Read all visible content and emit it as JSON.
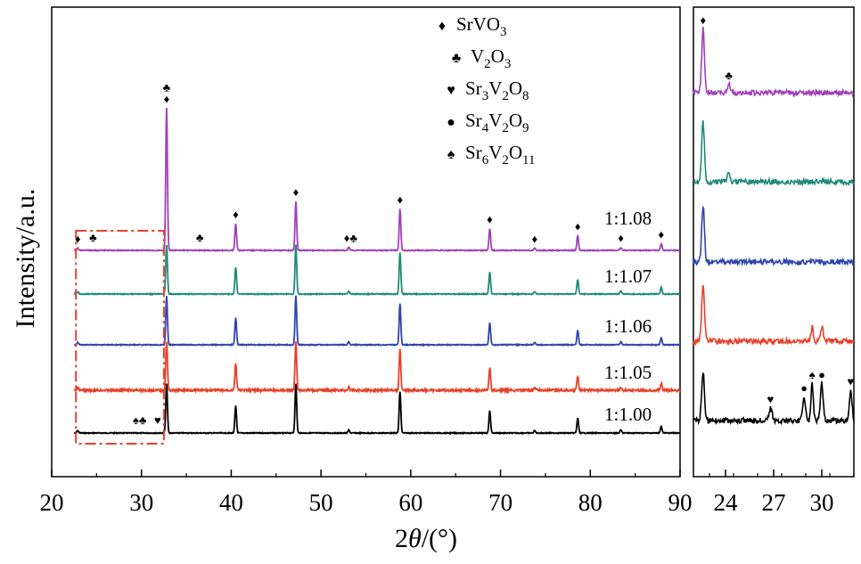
{
  "chart_data": {
    "type": "line",
    "xlabel": "2θ/(°)",
    "ylabel": "Intensity/a.u.",
    "xlim": [
      20,
      90
    ],
    "x_ticks": [
      "20",
      "30",
      "40",
      "50",
      "60",
      "70",
      "80",
      "90"
    ],
    "inset": {
      "xlim": [
        22,
        32
      ],
      "x_ticks": [
        "24",
        "27",
        "30"
      ],
      "highlight_range": [
        23.0,
        32.5
      ]
    },
    "legend": [
      {
        "marker": "♦",
        "label": "SrVO",
        "sub": "3",
        "parts": [
          [
            "SrVO",
            ""
          ],
          [
            "3",
            "sub"
          ]
        ]
      },
      {
        "marker": "♣",
        "label": "V",
        "parts": [
          [
            "V",
            ""
          ],
          [
            "2",
            "sub"
          ],
          [
            "O",
            ""
          ],
          [
            "3",
            "sub"
          ]
        ]
      },
      {
        "marker": "♥",
        "label": "Sr",
        "parts": [
          [
            "Sr",
            ""
          ],
          [
            "3",
            "sub"
          ],
          [
            "V",
            ""
          ],
          [
            "2",
            "sub"
          ],
          [
            "O",
            ""
          ],
          [
            "8",
            "sub"
          ]
        ]
      },
      {
        "marker": "●",
        "label": "Sr",
        "parts": [
          [
            "Sr",
            ""
          ],
          [
            "4",
            "sub"
          ],
          [
            "V",
            ""
          ],
          [
            "2",
            "sub"
          ],
          [
            "O",
            ""
          ],
          [
            "9",
            "sub"
          ]
        ]
      },
      {
        "marker": "♠",
        "label": "Sr",
        "parts": [
          [
            "Sr",
            ""
          ],
          [
            "6",
            "sub"
          ],
          [
            "V",
            ""
          ],
          [
            "2",
            "sub"
          ],
          [
            "O",
            ""
          ],
          [
            "11",
            "sub"
          ]
        ]
      }
    ],
    "series": [
      {
        "name": "1:1.00",
        "color": "#000000",
        "baseline": 0.0,
        "scale": 1.0,
        "inset_peaks": [
          [
            22.6,
            0.75,
            0.12
          ],
          [
            26.8,
            0.18,
            0.15
          ],
          [
            28.9,
            0.35,
            0.12
          ],
          [
            29.4,
            0.55,
            0.1
          ],
          [
            30.0,
            0.55,
            0.12
          ],
          [
            31.8,
            0.45,
            0.12
          ]
        ]
      },
      {
        "name": "1:1.05",
        "color": "#e8402a",
        "baseline": 1.0,
        "scale": 1.0,
        "inset_peaks": [
          [
            22.6,
            0.85,
            0.12
          ],
          [
            29.4,
            0.22,
            0.1
          ],
          [
            30.0,
            0.22,
            0.12
          ]
        ]
      },
      {
        "name": "1:1.06",
        "color": "#2e44b0",
        "baseline": 2.0,
        "scale": 1.0,
        "inset_peaks": [
          [
            22.6,
            0.85,
            0.12
          ]
        ]
      },
      {
        "name": "1:1.07",
        "color": "#1e8a7a",
        "baseline": 3.0,
        "scale": 1.0,
        "inset_peaks": [
          [
            22.6,
            0.9,
            0.12
          ],
          [
            24.2,
            0.12,
            0.12
          ]
        ]
      },
      {
        "name": "1:1.08",
        "color": "#a040b8",
        "baseline": 4.0,
        "scale": 1.0,
        "inset_peaks": [
          [
            22.6,
            0.95,
            0.12
          ],
          [
            24.2,
            0.12,
            0.12
          ]
        ]
      }
    ],
    "main_peaks": [
      {
        "x": 22.9,
        "h": 0.05
      },
      {
        "x": 32.8,
        "h": 1.0
      },
      {
        "x": 40.5,
        "h": 0.55
      },
      {
        "x": 47.2,
        "h": 1.0
      },
      {
        "x": 53.1,
        "h": 0.06
      },
      {
        "x": 58.8,
        "h": 0.85
      },
      {
        "x": 68.8,
        "h": 0.45
      },
      {
        "x": 73.8,
        "h": 0.05
      },
      {
        "x": 78.6,
        "h": 0.3
      },
      {
        "x": 83.4,
        "h": 0.06
      },
      {
        "x": 87.9,
        "h": 0.14
      }
    ],
    "peak_markers": [
      {
        "x": 22.9,
        "symbols": "♦",
        "over": "1:1.08"
      },
      {
        "x": 24.6,
        "symbols": "♣",
        "over": "1:1.08"
      },
      {
        "x": 32.8,
        "symbols": "♣\n♦",
        "over": "1:1.08"
      },
      {
        "x": 36.5,
        "symbols": "♣",
        "over": "1:1.08"
      },
      {
        "x": 40.5,
        "symbols": "♦",
        "over": "1:1.08"
      },
      {
        "x": 47.2,
        "symbols": "♦",
        "over": "1:1.08"
      },
      {
        "x": 53.3,
        "symbols": "♦♣",
        "over": "1:1.08"
      },
      {
        "x": 58.8,
        "symbols": "♦",
        "over": "1:1.08"
      },
      {
        "x": 68.8,
        "symbols": "♦",
        "over": "1:1.08"
      },
      {
        "x": 73.8,
        "symbols": "♦",
        "over": "1:1.08"
      },
      {
        "x": 78.6,
        "symbols": "♦",
        "over": "1:1.08"
      },
      {
        "x": 83.4,
        "symbols": "♦",
        "over": "1:1.08"
      },
      {
        "x": 87.9,
        "symbols": "♦",
        "over": "1:1.08"
      },
      {
        "x": 29.8,
        "symbols": "♠♣",
        "over": "1:1.00"
      },
      {
        "x": 31.8,
        "symbols": "♥",
        "over": "1:1.00"
      }
    ],
    "inset_markers": [
      {
        "x": 22.6,
        "symbol": "♦",
        "over": "1:1.08"
      },
      {
        "x": 24.2,
        "symbol": "♣",
        "over": "1:1.08"
      },
      {
        "x": 26.8,
        "symbol": "♥",
        "over": "1:1.00"
      },
      {
        "x": 28.9,
        "symbol": "●",
        "over": "1:1.00"
      },
      {
        "x": 29.4,
        "symbol": "♠",
        "over": "1:1.00"
      },
      {
        "x": 30.0,
        "symbol": "●",
        "over": "1:1.00"
      },
      {
        "x": 31.8,
        "symbol": "♥",
        "over": "1:1.00"
      }
    ]
  }
}
